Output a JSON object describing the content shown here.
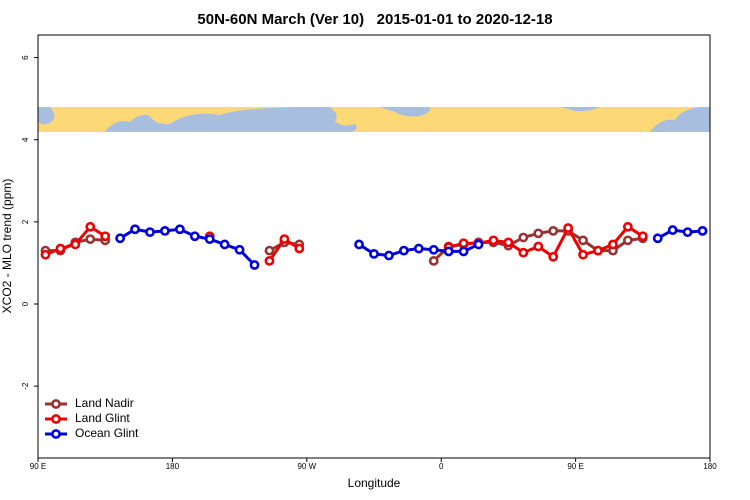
{
  "chart_data": {
    "type": "line",
    "title": "50N-60N March (Ver 10)   2015-01-01 to 2020-12-18",
    "x_label": "Longitude",
    "y_label": "XCO2 - MLO trend (ppm)",
    "xlim": [
      90,
      540
    ],
    "ylim": [
      -3.75,
      6.55
    ],
    "xticks": [
      {
        "value": 90,
        "label": "90 E"
      },
      180,
      {
        "value": 270,
        "label": "90 W"
      },
      {
        "value": 360,
        "label": "0"
      },
      {
        "value": 450,
        "label": "90 E"
      },
      {
        "value": 540,
        "label": "180"
      }
    ],
    "yticks": [
      -2,
      0,
      2,
      4,
      6
    ],
    "legend": "bottom-left",
    "x": [
      95,
      105,
      115,
      125,
      135,
      145,
      155,
      165,
      175,
      185,
      195,
      205,
      215,
      225,
      235,
      245,
      255,
      265,
      275,
      285,
      295,
      305,
      315,
      325,
      335,
      345,
      355,
      365,
      375,
      385,
      395,
      405,
      415,
      425,
      435,
      445,
      455,
      465,
      475,
      485,
      495,
      505,
      515,
      525,
      535
    ],
    "series": [
      {
        "name": "Land Nadir",
        "color": "#993333",
        "values": [
          1.3,
          1.3,
          1.5,
          1.58,
          1.55,
          null,
          null,
          null,
          null,
          null,
          null,
          null,
          null,
          null,
          null,
          1.3,
          1.5,
          1.45,
          null,
          null,
          null,
          null,
          null,
          null,
          null,
          null,
          1.05,
          1.4,
          1.45,
          1.5,
          1.5,
          1.42,
          1.62,
          1.72,
          1.78,
          1.78,
          1.55,
          1.3,
          1.3,
          1.55,
          1.6,
          null,
          null,
          null,
          null
        ]
      },
      {
        "name": "Land Glint",
        "color": "#ee0000",
        "values": [
          1.2,
          1.35,
          1.45,
          1.88,
          1.65,
          null,
          null,
          null,
          null,
          null,
          null,
          1.65,
          null,
          null,
          null,
          1.05,
          1.58,
          1.35,
          null,
          null,
          null,
          null,
          null,
          null,
          null,
          null,
          null,
          1.38,
          1.48,
          1.48,
          1.55,
          1.5,
          1.25,
          1.4,
          1.15,
          1.85,
          1.2,
          1.3,
          1.45,
          1.88,
          1.65,
          null,
          null,
          null,
          null
        ]
      },
      {
        "name": "Ocean Glint",
        "color": "#0000dd",
        "values": [
          null,
          null,
          null,
          null,
          null,
          1.6,
          1.82,
          1.75,
          1.78,
          1.82,
          1.65,
          1.58,
          1.45,
          1.32,
          0.95,
          null,
          null,
          null,
          null,
          null,
          null,
          1.45,
          1.22,
          1.18,
          1.3,
          1.35,
          1.32,
          1.28,
          1.28,
          1.45,
          null,
          null,
          null,
          null,
          null,
          null,
          null,
          null,
          null,
          null,
          null,
          1.6,
          1.8,
          1.75,
          1.78
        ]
      }
    ]
  }
}
